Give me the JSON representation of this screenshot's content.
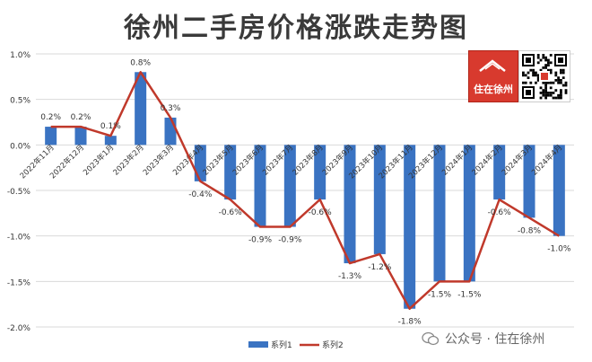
{
  "title": "徐州二手房价格涨跌走势图",
  "brand": {
    "logo_text": "住在徐州",
    "watermark": "公众号 · 住在徐州",
    "color": "#d83a2e"
  },
  "colors": {
    "bar": "#3a73c2",
    "line": "#c0392b"
  },
  "chart_data": {
    "type": "bar",
    "categories": [
      "2022年11月",
      "2022年12月",
      "2023年1月",
      "2023年2月",
      "2023年3月",
      "2023年4月",
      "2023年5月",
      "2023年6月",
      "2023年7月",
      "2023年8月",
      "2023年9月",
      "2023年10月",
      "2023年11月",
      "2023年12月",
      "2024年1月",
      "2024年2月",
      "2024年3月",
      "2024年4月"
    ],
    "series": [
      {
        "name": "系列1",
        "kind": "bar",
        "values": [
          0.2,
          0.2,
          0.1,
          0.8,
          0.3,
          -0.4,
          -0.6,
          -0.9,
          -0.9,
          -0.6,
          -1.3,
          -1.2,
          -1.8,
          -1.5,
          -1.5,
          -0.6,
          -0.8,
          -1.0
        ]
      },
      {
        "name": "系列2",
        "kind": "line",
        "values": [
          0.2,
          0.2,
          0.1,
          0.8,
          0.3,
          -0.4,
          -0.6,
          -0.9,
          -0.9,
          -0.6,
          -1.3,
          -1.2,
          -1.8,
          -1.5,
          -1.5,
          -0.6,
          -0.8,
          -1.0
        ]
      }
    ],
    "data_labels": [
      "0.2%",
      "0.2%",
      "0.1%",
      "0.8%",
      "0.3%",
      "-0.4%",
      "-0.6%",
      "-0.9%",
      "-0.9%",
      "-0.6%",
      "-1.3%",
      "-1.2%",
      "-1.8%",
      "-1.5%",
      "-1.5%",
      "-0.6%",
      "-0.8%",
      "-1.0%"
    ],
    "yticks": [
      1.0,
      0.5,
      0.0,
      -0.5,
      -1.0,
      -1.5,
      -2.0
    ],
    "ytick_labels": [
      "1.0%",
      "0.5%",
      "0.0%",
      "-0.5%",
      "-1.0%",
      "-1.5%",
      "-2.0%"
    ],
    "ylim": [
      -2.0,
      1.0
    ],
    "grid": true,
    "legend": "bottom"
  }
}
